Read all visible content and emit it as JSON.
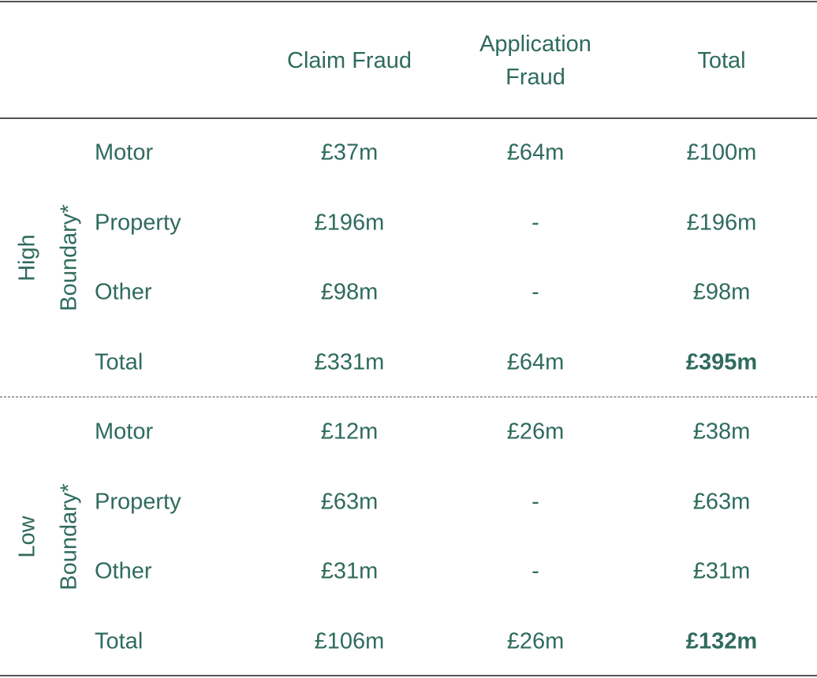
{
  "table": {
    "columns": [
      "Claim Fraud",
      "Application Fraud",
      "Total"
    ],
    "groups": [
      {
        "label": [
          "High",
          "Boundary*"
        ],
        "rows": [
          [
            "Motor",
            "£37m",
            "£64m",
            "£100m"
          ],
          [
            "Property",
            "£196m",
            "-",
            "£196m"
          ],
          [
            "Other",
            "£98m",
            "-",
            "£98m"
          ],
          [
            "Total",
            "£331m",
            "£64m",
            "£395m"
          ]
        ]
      },
      {
        "label": [
          "Low",
          "Boundary*"
        ],
        "rows": [
          [
            "Motor",
            "£12m",
            "£26m",
            "£38m"
          ],
          [
            "Property",
            "£63m",
            "-",
            "£63m"
          ],
          [
            "Other",
            "£31m",
            "-",
            "£31m"
          ],
          [
            "Total",
            "£106m",
            "£26m",
            "£132m"
          ]
        ]
      }
    ]
  }
}
